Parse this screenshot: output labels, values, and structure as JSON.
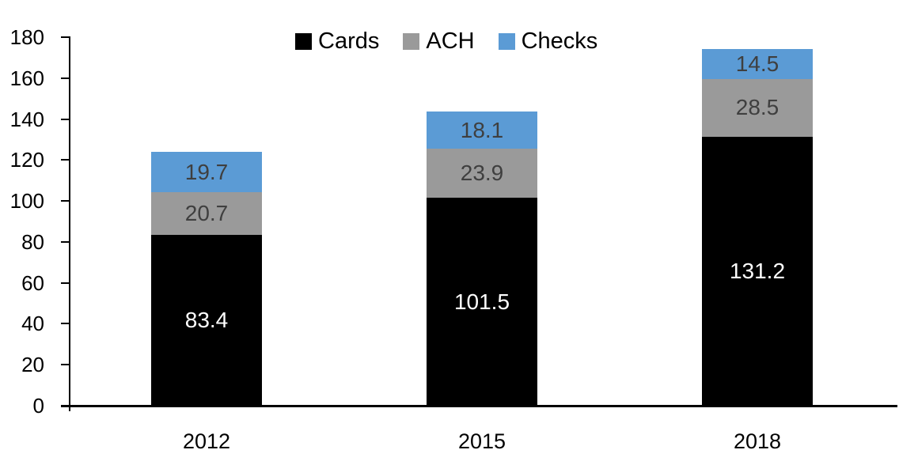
{
  "chart_data": {
    "type": "bar",
    "stacked": true,
    "categories": [
      "2012",
      "2015",
      "2018"
    ],
    "series": [
      {
        "name": "Cards",
        "color": "#000000",
        "label_color": "#ffffff",
        "values": [
          83.4,
          101.5,
          131.2
        ]
      },
      {
        "name": "ACH",
        "color": "#9a9a9a",
        "label_color": "#3f3f3f",
        "values": [
          20.7,
          23.9,
          28.5
        ]
      },
      {
        "name": "Checks",
        "color": "#5b9bd5",
        "label_color": "#3f3f3f",
        "values": [
          19.7,
          18.1,
          14.5
        ]
      }
    ],
    "title": "",
    "xlabel": "",
    "ylabel": "",
    "ylim": [
      0,
      180
    ],
    "ytick_step": 20,
    "yticks": [
      0,
      20,
      40,
      60,
      80,
      100,
      120,
      140,
      160,
      180
    ],
    "grid": false,
    "data_labels": true,
    "legend_position": "top",
    "axis_color": "#000000"
  },
  "legend": {
    "items": [
      {
        "label": "Cards",
        "color": "#000000"
      },
      {
        "label": "ACH",
        "color": "#9a9a9a"
      },
      {
        "label": "Checks",
        "color": "#5b9bd5"
      }
    ]
  }
}
